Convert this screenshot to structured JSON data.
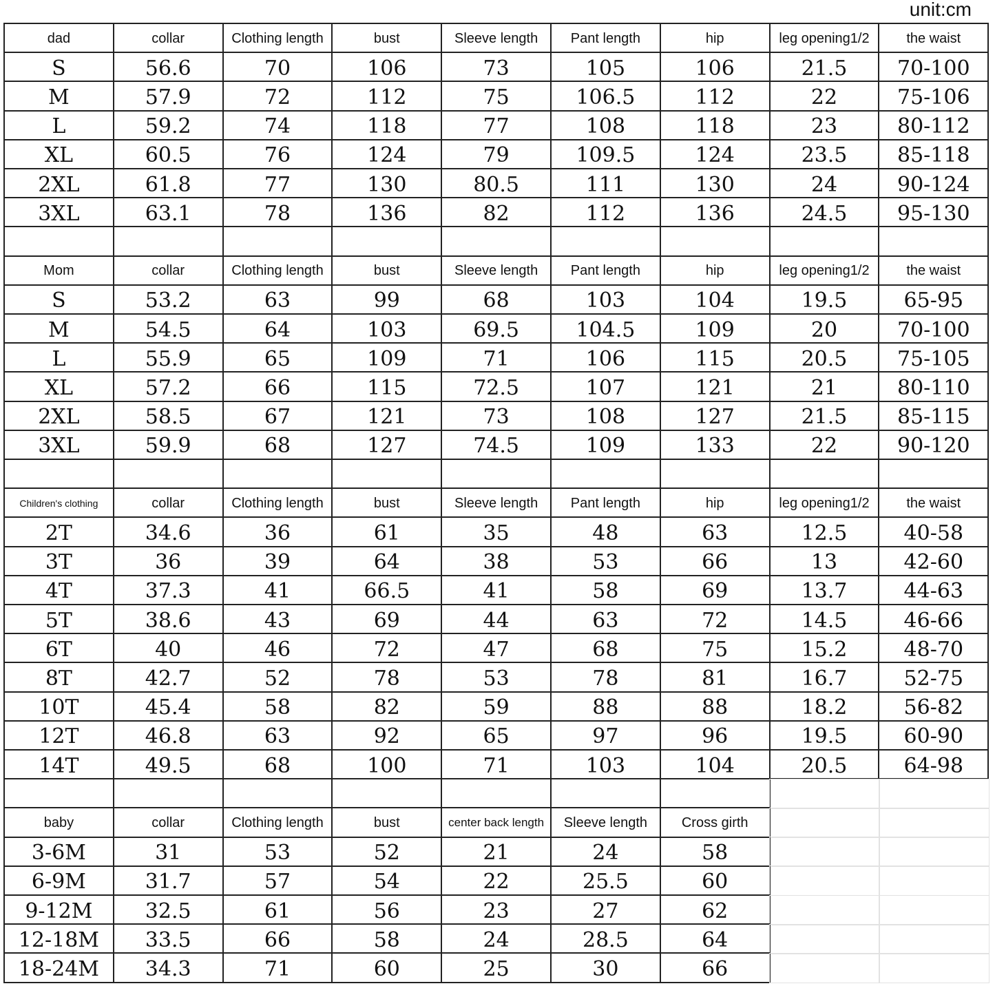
{
  "unit_label": "unit:cm",
  "sections": [
    {
      "headers": [
        "dad",
        "collar",
        "Clothing length",
        "bust",
        "Sleeve length",
        "Pant length",
        "hip",
        "leg opening1/2",
        "the waist"
      ],
      "rows": [
        [
          "S",
          "56.6",
          "70",
          "106",
          "73",
          "105",
          "106",
          "21.5",
          "70-100"
        ],
        [
          "M",
          "57.9",
          "72",
          "112",
          "75",
          "106.5",
          "112",
          "22",
          "75-106"
        ],
        [
          "L",
          "59.2",
          "74",
          "118",
          "77",
          "108",
          "118",
          "23",
          "80-112"
        ],
        [
          "XL",
          "60.5",
          "76",
          "124",
          "79",
          "109.5",
          "124",
          "23.5",
          "85-118"
        ],
        [
          "2XL",
          "61.8",
          "77",
          "130",
          "80.5",
          "111",
          "130",
          "24",
          "90-124"
        ],
        [
          "3XL",
          "63.1",
          "78",
          "136",
          "82",
          "112",
          "136",
          "24.5",
          "95-130"
        ]
      ]
    },
    {
      "headers": [
        "Mom",
        "collar",
        "Clothing length",
        "bust",
        "Sleeve length",
        "Pant length",
        "hip",
        "leg opening1/2",
        "the waist"
      ],
      "rows": [
        [
          "S",
          "53.2",
          "63",
          "99",
          "68",
          "103",
          "104",
          "19.5",
          "65-95"
        ],
        [
          "M",
          "54.5",
          "64",
          "103",
          "69.5",
          "104.5",
          "109",
          "20",
          "70-100"
        ],
        [
          "L",
          "55.9",
          "65",
          "109",
          "71",
          "106",
          "115",
          "20.5",
          "75-105"
        ],
        [
          "XL",
          "57.2",
          "66",
          "115",
          "72.5",
          "107",
          "121",
          "21",
          "80-110"
        ],
        [
          "2XL",
          "58.5",
          "67",
          "121",
          "73",
          "108",
          "127",
          "21.5",
          "85-115"
        ],
        [
          "3XL",
          "59.9",
          "68",
          "127",
          "74.5",
          "109",
          "133",
          "22",
          "90-120"
        ]
      ]
    },
    {
      "headers": [
        "Children's clothing",
        "collar",
        "Clothing length",
        "bust",
        "Sleeve length",
        "Pant length",
        "hip",
        "leg opening1/2",
        "the waist"
      ],
      "rows": [
        [
          "2T",
          "34.6",
          "36",
          "61",
          "35",
          "48",
          "63",
          "12.5",
          "40-58"
        ],
        [
          "3T",
          "36",
          "39",
          "64",
          "38",
          "53",
          "66",
          "13",
          "42-60"
        ],
        [
          "4T",
          "37.3",
          "41",
          "66.5",
          "41",
          "58",
          "69",
          "13.7",
          "44-63"
        ],
        [
          "5T",
          "38.6",
          "43",
          "69",
          "44",
          "63",
          "72",
          "14.5",
          "46-66"
        ],
        [
          "6T",
          "40",
          "46",
          "72",
          "47",
          "68",
          "75",
          "15.2",
          "48-70"
        ],
        [
          "8T",
          "42.7",
          "52",
          "78",
          "53",
          "78",
          "81",
          "16.7",
          "52-75"
        ],
        [
          "10T",
          "45.4",
          "58",
          "82",
          "59",
          "88",
          "88",
          "18.2",
          "56-82"
        ],
        [
          "12T",
          "46.8",
          "63",
          "92",
          "65",
          "97",
          "96",
          "19.5",
          "60-90"
        ],
        [
          "14T",
          "49.5",
          "68",
          "100",
          "71",
          "103",
          "104",
          "20.5",
          "64-98"
        ]
      ]
    },
    {
      "headers": [
        "baby",
        "collar",
        "Clothing length",
        "bust",
        "center back length",
        "Sleeve length",
        "Cross girth"
      ],
      "rows": [
        [
          "3-6M",
          "31",
          "53",
          "52",
          "21",
          "24",
          "58"
        ],
        [
          "6-9M",
          "31.7",
          "57",
          "54",
          "22",
          "25.5",
          "60"
        ],
        [
          "9-12M",
          "32.5",
          "61",
          "56",
          "23",
          "27",
          "62"
        ],
        [
          "12-18M",
          "33.5",
          "66",
          "58",
          "24",
          "28.5",
          "64"
        ],
        [
          "18-24M",
          "34.3",
          "71",
          "60",
          "25",
          "30",
          "66"
        ]
      ]
    }
  ]
}
